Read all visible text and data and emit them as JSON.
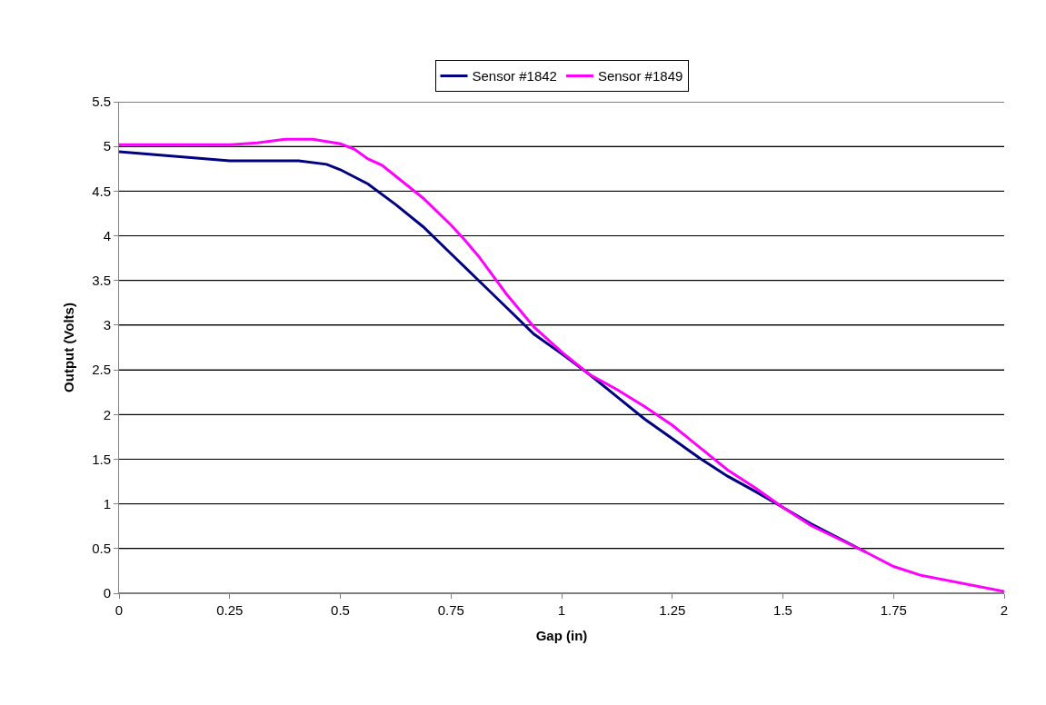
{
  "chart_data": {
    "type": "line",
    "xlabel": "Gap (in)",
    "ylabel": "Output (Volts)",
    "xlim": [
      0,
      2
    ],
    "xticks": [
      0,
      0.25,
      0.5,
      0.75,
      1,
      1.25,
      1.5,
      1.75,
      2
    ],
    "ylim": [
      0,
      5.5
    ],
    "yticks": [
      0,
      0.5,
      1,
      1.5,
      2,
      2.5,
      3,
      3.5,
      4,
      4.5,
      5,
      5.5
    ],
    "grid": "y",
    "legend": "top",
    "marker": "none",
    "line_style": "solid",
    "series": [
      {
        "name": "Sensor #1842",
        "color": "#000080",
        "x": [
          0,
          0.25,
          0.406,
          0.469,
          0.5,
          0.5625,
          0.625,
          0.6875,
          0.75,
          0.8125,
          0.875,
          0.9375,
          1,
          1.0625,
          1.125,
          1.1875,
          1.25,
          1.3125,
          1.375,
          1.4375,
          1.5,
          1.5625,
          1.625,
          1.6875
        ],
        "values": [
          4.94,
          4.84,
          4.84,
          4.8,
          4.74,
          4.58,
          4.35,
          4.1,
          3.8,
          3.5,
          3.2,
          2.9,
          2.68,
          2.45,
          2.2,
          1.95,
          1.73,
          1.51,
          1.31,
          1.14,
          0.96,
          0.78,
          0.62,
          0.46
        ]
      },
      {
        "name": "Sensor #1849",
        "color": "#ff00ff",
        "x": [
          0,
          0.25,
          0.3125,
          0.375,
          0.4375,
          0.5,
          0.5312,
          0.5625,
          0.594,
          0.6875,
          0.75,
          0.78,
          0.8125,
          0.875,
          0.9375,
          1,
          1.0625,
          1.125,
          1.1875,
          1.25,
          1.3125,
          1.375,
          1.4375,
          1.5,
          1.5625,
          1.625,
          1.6875,
          1.75,
          1.8125,
          2
        ],
        "values": [
          5.02,
          5.02,
          5.04,
          5.08,
          5.08,
          5.03,
          4.97,
          4.86,
          4.79,
          4.42,
          4.12,
          3.96,
          3.77,
          3.35,
          2.98,
          2.7,
          2.45,
          2.28,
          2.09,
          1.88,
          1.63,
          1.38,
          1.18,
          0.96,
          0.76,
          0.61,
          0.46,
          0.3,
          0.2,
          0.02
        ]
      }
    ]
  }
}
